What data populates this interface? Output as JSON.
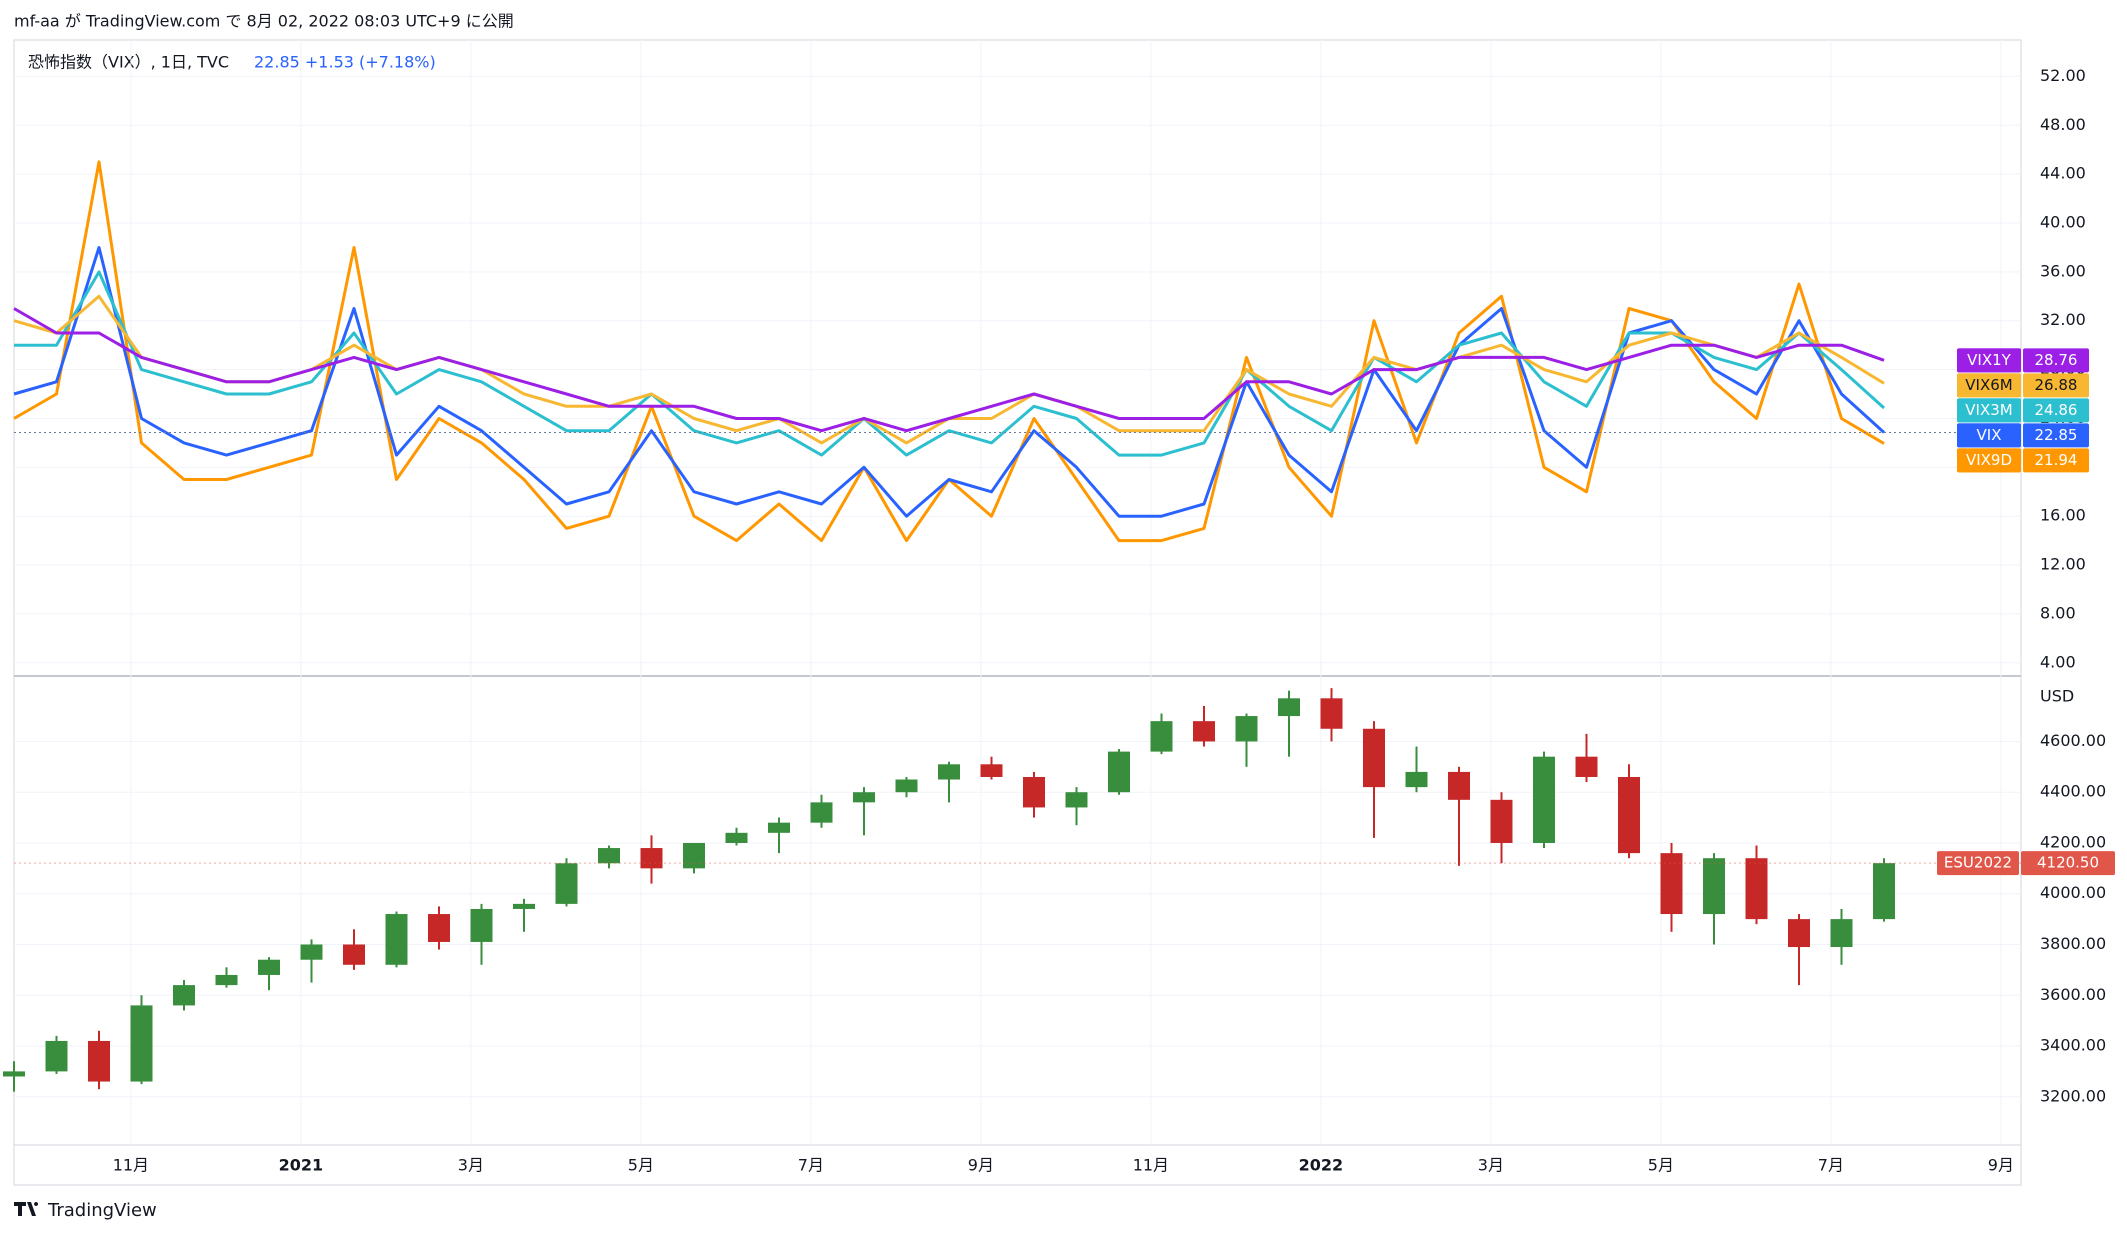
{
  "header": {
    "publisher": "mf-aa が TradingView.com で 8月 02, 2022 08:03 UTC+9 に公開"
  },
  "footer": {
    "brand": "TradingView"
  },
  "chart_data": [
    {
      "type": "line",
      "title": "恐怖指数（VIX）, 1日, TVC",
      "quote": "22.85  +1.53 (+7.18%)",
      "main_series": "VIX",
      "x": [
        "2020-09",
        "2020-10",
        "2020-10",
        "2020-11",
        "2020-11",
        "2020-12",
        "2020-12",
        "2021-01",
        "2021-01",
        "2021-02",
        "2021-02",
        "2021-03",
        "2021-03",
        "2021-04",
        "2021-04",
        "2021-05",
        "2021-05",
        "2021-06",
        "2021-06",
        "2021-07",
        "2021-07",
        "2021-08",
        "2021-08",
        "2021-09",
        "2021-09",
        "2021-10",
        "2021-10",
        "2021-11",
        "2021-11",
        "2021-12",
        "2021-12",
        "2022-01",
        "2022-01",
        "2022-02",
        "2022-02",
        "2022-03",
        "2022-03",
        "2022-04",
        "2022-04",
        "2022-05",
        "2022-05",
        "2022-06",
        "2022-06",
        "2022-07",
        "2022-07"
      ],
      "series": [
        {
          "name": "VIX1Y",
          "color": "#9c1fe6",
          "values": [
            33,
            31,
            31,
            29,
            28,
            27,
            27,
            28,
            29,
            28,
            29,
            28,
            27,
            26,
            25,
            25,
            25,
            24,
            24,
            23,
            24,
            23,
            24,
            25,
            26,
            25,
            24,
            24,
            24,
            27,
            27,
            26,
            28,
            28,
            29,
            29,
            29,
            28,
            29,
            30,
            30,
            29,
            30,
            30,
            28.76
          ]
        },
        {
          "name": "VIX6M",
          "color": "#f7b731",
          "values": [
            32,
            31,
            34,
            29,
            28,
            27,
            27,
            28,
            30,
            28,
            29,
            28,
            26,
            25,
            25,
            26,
            24,
            23,
            24,
            22,
            24,
            22,
            24,
            24,
            26,
            25,
            23,
            23,
            23,
            28,
            26,
            25,
            29,
            28,
            29,
            30,
            28,
            27,
            30,
            31,
            30,
            29,
            31,
            29,
            26.88
          ]
        },
        {
          "name": "VIX3M",
          "color": "#2bbfcf",
          "values": [
            30,
            30,
            36,
            28,
            27,
            26,
            26,
            27,
            31,
            26,
            28,
            27,
            25,
            23,
            23,
            26,
            23,
            22,
            23,
            21,
            24,
            21,
            23,
            22,
            25,
            24,
            21,
            21,
            22,
            28,
            25,
            23,
            29,
            27,
            30,
            31,
            27,
            25,
            31,
            31,
            29,
            28,
            31,
            28,
            24.86
          ]
        },
        {
          "name": "VIX",
          "color": "#2962ff",
          "values": [
            26,
            27,
            38,
            24,
            22,
            21,
            22,
            23,
            33,
            21,
            25,
            23,
            20,
            17,
            18,
            23,
            18,
            17,
            18,
            17,
            20,
            16,
            19,
            18,
            23,
            20,
            16,
            16,
            17,
            27,
            21,
            18,
            28,
            23,
            30,
            33,
            23,
            20,
            31,
            32,
            28,
            26,
            32,
            26,
            22.85
          ]
        },
        {
          "name": "VIX9D",
          "color": "#ff9800",
          "values": [
            24,
            26,
            45,
            22,
            19,
            19,
            20,
            21,
            38,
            19,
            24,
            22,
            19,
            15,
            16,
            25,
            16,
            14,
            17,
            14,
            20,
            14,
            19,
            16,
            24,
            19,
            14,
            14,
            15,
            29,
            20,
            16,
            32,
            22,
            31,
            34,
            20,
            18,
            33,
            32,
            27,
            24,
            35,
            24,
            21.94
          ]
        }
      ],
      "ylim": [
        3,
        54
      ],
      "yticks": [
        {
          "value": 4,
          "label": "4.00"
        },
        {
          "value": 8,
          "label": "8.00"
        },
        {
          "value": 12,
          "label": "12.00"
        },
        {
          "value": 16,
          "label": "16.00"
        },
        {
          "value": 20,
          "label": "20.00"
        },
        {
          "value": 24,
          "label": "24.00"
        },
        {
          "value": 28,
          "label": "28.00"
        },
        {
          "value": 32,
          "label": "32.00"
        },
        {
          "value": 36,
          "label": "36.00"
        },
        {
          "value": 40,
          "label": "40.00"
        },
        {
          "value": 44,
          "label": "44.00"
        },
        {
          "value": 48,
          "label": "48.00"
        },
        {
          "value": 52,
          "label": "52.00"
        }
      ],
      "grid": true
    },
    {
      "type": "candlestick",
      "name": "ESU2022",
      "y_unit": "USD",
      "up_color": "#388e3c",
      "down_color": "#c62828",
      "x": [
        "2020-09",
        "2020-10",
        "2020-10",
        "2020-11",
        "2020-11",
        "2020-12",
        "2020-12",
        "2021-01",
        "2021-01",
        "2021-02",
        "2021-02",
        "2021-03",
        "2021-03",
        "2021-04",
        "2021-04",
        "2021-05",
        "2021-05",
        "2021-06",
        "2021-06",
        "2021-07",
        "2021-07",
        "2021-08",
        "2021-08",
        "2021-09",
        "2021-09",
        "2021-10",
        "2021-10",
        "2021-11",
        "2021-11",
        "2021-12",
        "2021-12",
        "2022-01",
        "2022-01",
        "2022-02",
        "2022-02",
        "2022-03",
        "2022-03",
        "2022-04",
        "2022-04",
        "2022-05",
        "2022-05",
        "2022-06",
        "2022-06",
        "2022-07",
        "2022-07"
      ],
      "open": [
        3280,
        3300,
        3420,
        3260,
        3560,
        3640,
        3680,
        3740,
        3800,
        3720,
        3920,
        3810,
        3940,
        3960,
        4120,
        4180,
        4100,
        4200,
        4240,
        4280,
        4360,
        4400,
        4450,
        4510,
        4460,
        4340,
        4400,
        4560,
        4680,
        4600,
        4700,
        4770,
        4650,
        4420,
        4480,
        4370,
        4200,
        4540,
        4460,
        4160,
        3920,
        4140,
        3900,
        3790,
        3900
      ],
      "high": [
        3340,
        3440,
        3460,
        3600,
        3660,
        3710,
        3750,
        3820,
        3860,
        3930,
        3950,
        3960,
        3980,
        4140,
        4190,
        4230,
        4200,
        4260,
        4300,
        4390,
        4420,
        4460,
        4520,
        4540,
        4480,
        4420,
        4570,
        4710,
        4740,
        4710,
        4800,
        4810,
        4680,
        4580,
        4500,
        4400,
        4560,
        4630,
        4510,
        4200,
        4160,
        4190,
        3920,
        3940,
        4140
      ],
      "low": [
        3220,
        3290,
        3230,
        3250,
        3540,
        3630,
        3620,
        3650,
        3700,
        3710,
        3780,
        3720,
        3850,
        3950,
        4100,
        4040,
        4080,
        4190,
        4160,
        4260,
        4230,
        4380,
        4360,
        4450,
        4300,
        4270,
        4390,
        4550,
        4580,
        4500,
        4540,
        4600,
        4220,
        4400,
        4110,
        4120,
        4180,
        4440,
        4140,
        3850,
        3800,
        3880,
        3640,
        3720,
        3890
      ],
      "close": [
        3300,
        3420,
        3260,
        3560,
        3640,
        3680,
        3740,
        3800,
        3720,
        3920,
        3810,
        3940,
        3960,
        4120,
        4180,
        4100,
        4200,
        4240,
        4280,
        4360,
        4400,
        4450,
        4510,
        4460,
        4340,
        4400,
        4560,
        4680,
        4600,
        4700,
        4770,
        4650,
        4420,
        4480,
        4370,
        4200,
        4540,
        4460,
        4160,
        3920,
        4140,
        3900,
        3790,
        3900,
        4120.5
      ],
      "last_price": {
        "value": 4120.5,
        "label": "4120.50",
        "color": "#e0574a"
      },
      "ylim": [
        3010,
        4850
      ],
      "yticks": [
        {
          "value": 3200,
          "label": "3200.00"
        },
        {
          "value": 3400,
          "label": "3400.00"
        },
        {
          "value": 3600,
          "label": "3600.00"
        },
        {
          "value": 3800,
          "label": "3800.00"
        },
        {
          "value": 4000,
          "label": "4000.00"
        },
        {
          "value": 4200,
          "label": "4200.00"
        },
        {
          "value": 4400,
          "label": "4400.00"
        },
        {
          "value": 4600,
          "label": "4600.00"
        }
      ],
      "xticks": [
        {
          "value": "2020-11",
          "label": "11月"
        },
        {
          "value": "2021-01",
          "label": "2021"
        },
        {
          "value": "2021-03",
          "label": "3月"
        },
        {
          "value": "2021-05",
          "label": "5月"
        },
        {
          "value": "2021-07",
          "label": "7月"
        },
        {
          "value": "2021-09",
          "label": "9月"
        },
        {
          "value": "2021-11",
          "label": "11月"
        },
        {
          "value": "2022-01",
          "label": "2022"
        },
        {
          "value": "2022-03",
          "label": "3月"
        },
        {
          "value": "2022-05",
          "label": "5月"
        },
        {
          "value": "2022-07",
          "label": "7月"
        },
        {
          "value": "2022-09",
          "label": "9月"
        }
      ],
      "grid": true
    }
  ]
}
